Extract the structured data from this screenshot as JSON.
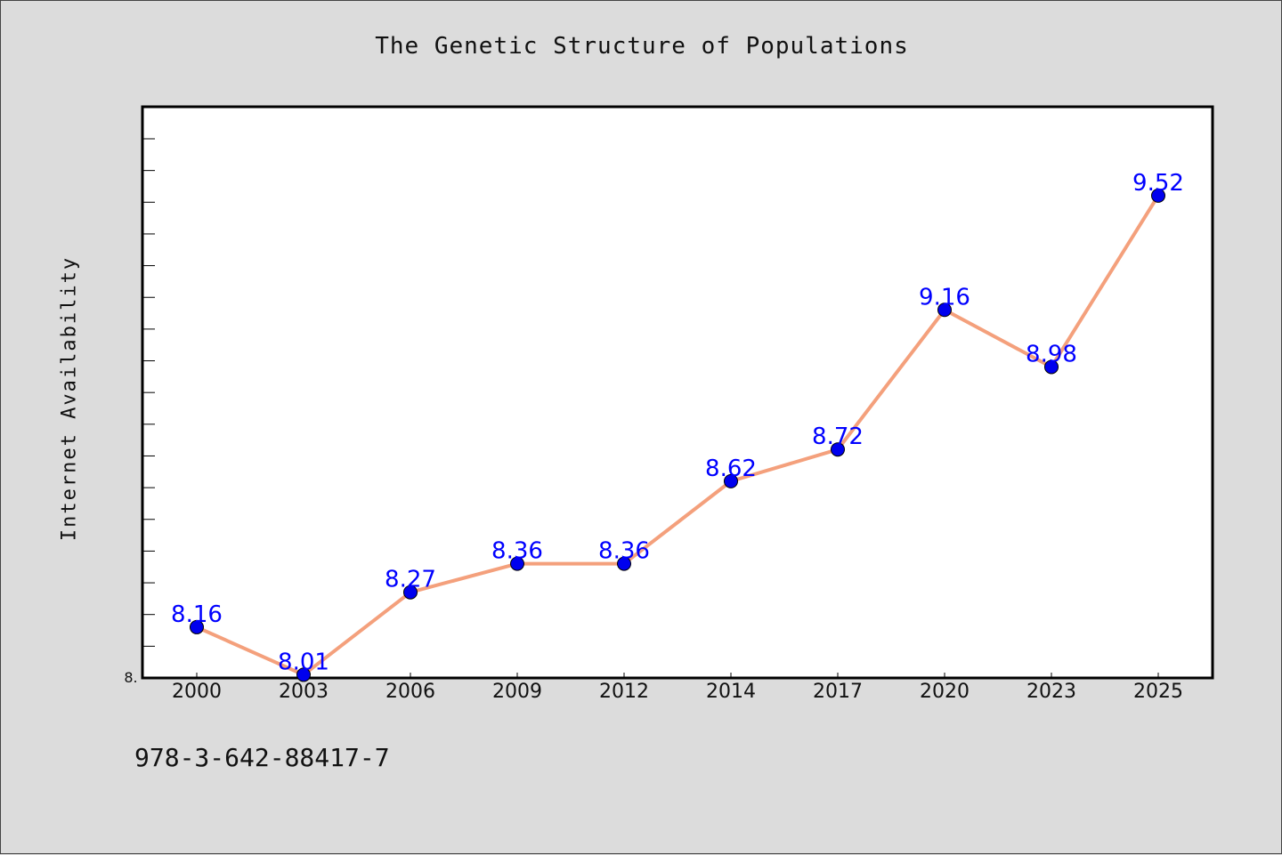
{
  "chart_data": {
    "type": "line",
    "title": "The Genetic Structure of Populations",
    "xlabel": "",
    "ylabel": "Internet Availability",
    "categories": [
      "2000",
      "2003",
      "2006",
      "2009",
      "2012",
      "2014",
      "2017",
      "2020",
      "2023",
      "2025"
    ],
    "series": [
      {
        "values": [
          8.16,
          8.01,
          8.27,
          8.36,
          8.36,
          8.62,
          8.72,
          9.16,
          8.98,
          9.52
        ],
        "data_labels": [
          "8.16",
          "8.01",
          "8.27",
          "8.36",
          "8.36",
          "8.62",
          "8.72",
          "9.16",
          "8.98",
          "9.52"
        ],
        "line_color": "#f4a07c",
        "marker_color": "#0000ee",
        "label_color": "#0000ff"
      }
    ],
    "ylim": [
      8.0,
      9.8
    ],
    "y_tick_label": "8.",
    "grid": false,
    "legend": "none"
  },
  "footer": {
    "isbn": "978-3-642-88417-7"
  },
  "colors": {
    "background": "#dcdcdc",
    "plot_background": "#ffffff"
  }
}
